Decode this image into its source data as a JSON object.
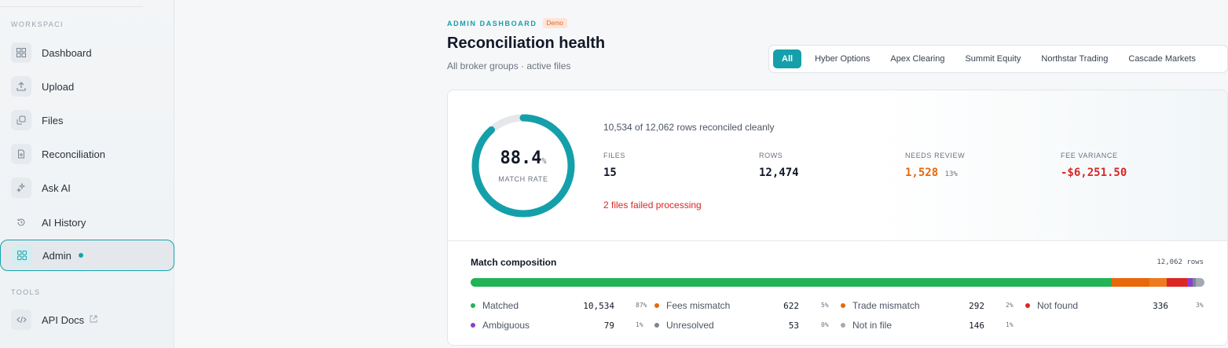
{
  "sidebar": {
    "workspace_label": "WORKSPACI",
    "tools_label": "TOOLS",
    "items": [
      {
        "label": "Dashboard",
        "icon": "grid-icon"
      },
      {
        "label": "Upload",
        "icon": "upload-icon"
      },
      {
        "label": "Files",
        "icon": "files-icon"
      },
      {
        "label": "Reconciliation",
        "icon": "document-icon"
      },
      {
        "label": "Ask AI",
        "icon": "sparkles-icon"
      },
      {
        "label": "AI History",
        "icon": "history-icon"
      },
      {
        "label": "Admin",
        "icon": "admin-grid-icon",
        "active": true
      }
    ],
    "tools": [
      {
        "label": "API Docs",
        "icon": "code-icon",
        "external_icon": "external-link-icon"
      }
    ]
  },
  "header": {
    "eyebrow": "ADMIN DASHBOARD",
    "badge": "Demo",
    "title": "Reconciliation health",
    "subtitle": "All broker groups · active files"
  },
  "filters": [
    "All",
    "Hyber Options",
    "Apex Clearing",
    "Summit Equity",
    "Northstar Trading",
    "Cascade Markets"
  ],
  "active_filter": "All",
  "health": {
    "match_rate": "88.4",
    "match_rate_unit": "%",
    "match_rate_value": 0.884,
    "match_rate_label": "MATCH RATE",
    "summary": "10,534 of 12,062 rows reconciled cleanly",
    "metrics": [
      {
        "label": "FILES",
        "value": "15",
        "sub": ""
      },
      {
        "label": "ROWS",
        "value": "12,474",
        "sub": ""
      },
      {
        "label": "NEEDS REVIEW",
        "value": "1,528",
        "sub": "13%"
      },
      {
        "label": "FEE VARIANCE",
        "value": "-$6,251.50",
        "sub": ""
      }
    ],
    "failed": "2 files failed processing"
  },
  "composition": {
    "title": "Match composition",
    "total": "12,062 rows",
    "colors": {
      "Matched": "#22b357",
      "Fees mismatch": "#e8680a",
      "Trade mismatch": "#e8680a",
      "Not found": "#dc2626",
      "Ambiguous": "#8b3fc9",
      "Unresolved": "#7b8593",
      "Not in file": "#a3a9b2"
    },
    "rows": [
      [
        {
          "name": "Matched",
          "count": "10,534",
          "pct": "87%"
        },
        {
          "name": "Fees mismatch",
          "count": "622",
          "pct": "5%"
        },
        {
          "name": "Trade mismatch",
          "count": "292",
          "pct": "2%"
        },
        {
          "name": "Not found",
          "count": "336",
          "pct": "3%"
        }
      ],
      [
        {
          "name": "Ambiguous",
          "count": "79",
          "pct": "1%"
        },
        {
          "name": "Unresolved",
          "count": "53",
          "pct": "0%"
        },
        {
          "name": "Not in file",
          "count": "146",
          "pct": "1%"
        }
      ]
    ],
    "segments": [
      {
        "name": "Matched",
        "value": 10534
      },
      {
        "name": "Fees mismatch",
        "value": 622
      },
      {
        "name": "Trade mismatch",
        "value": 292
      },
      {
        "name": "Not found",
        "value": 336
      },
      {
        "name": "Ambiguous",
        "value": 79
      },
      {
        "name": "Unresolved",
        "value": 53
      },
      {
        "name": "Not in file",
        "value": 146
      }
    ]
  }
}
